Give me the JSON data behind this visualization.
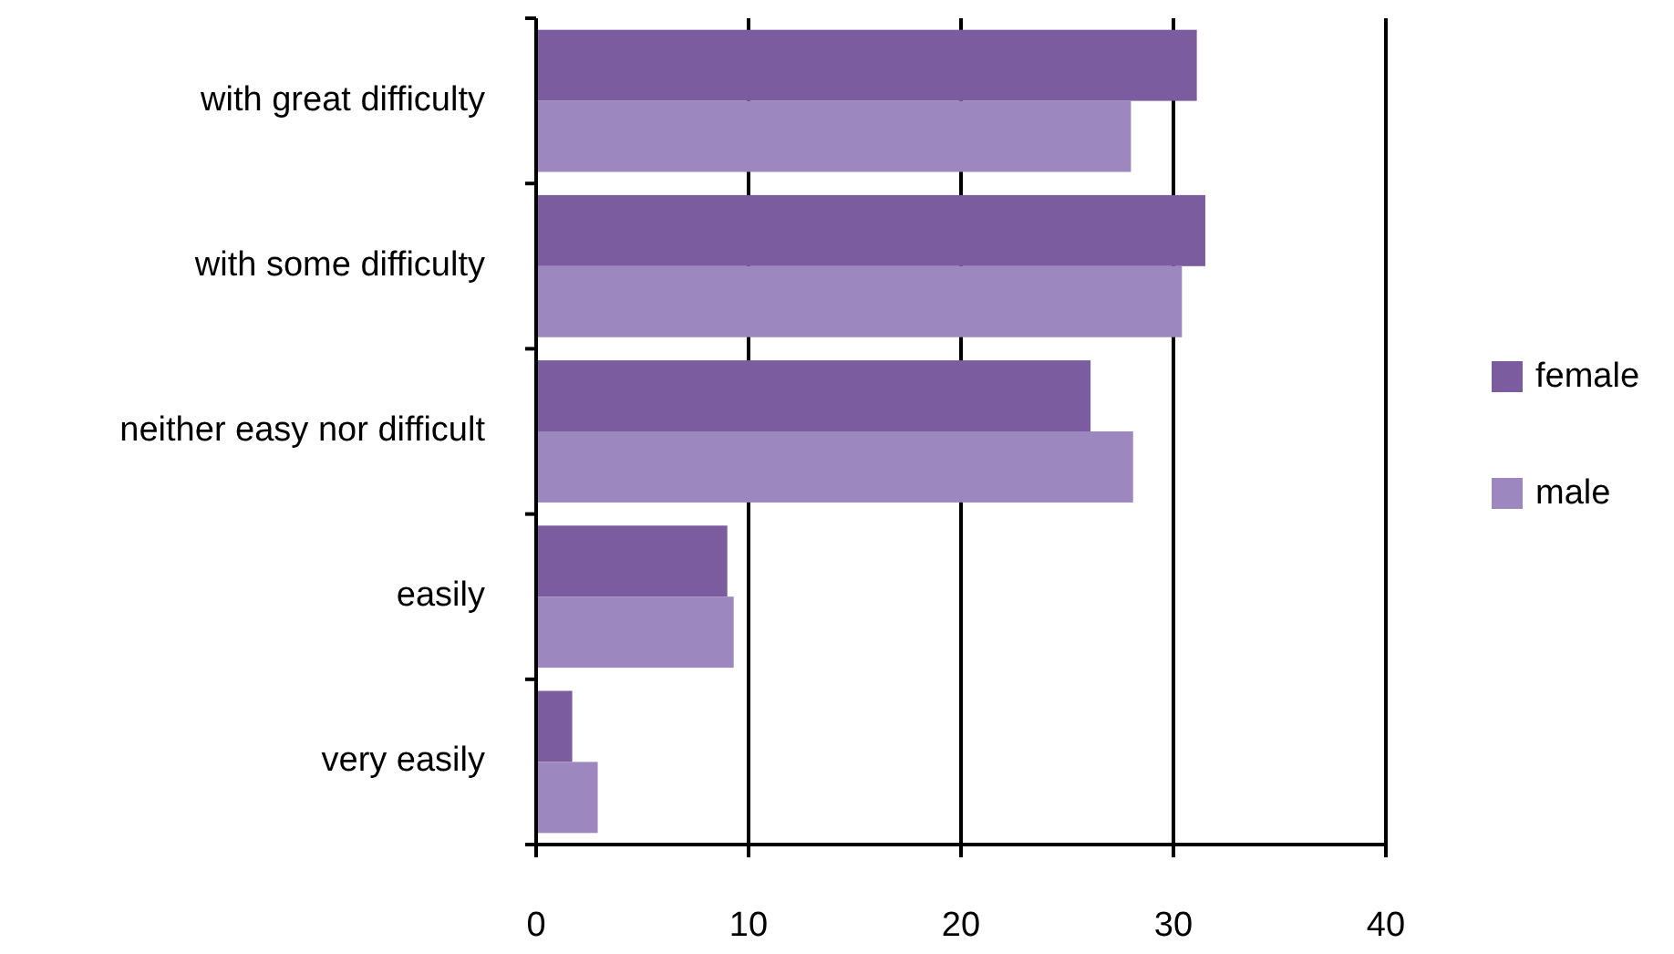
{
  "chart_data": {
    "type": "bar",
    "orientation": "horizontal",
    "categories": [
      "with great difficulty",
      "with some difficulty",
      "neither easy nor difficult",
      "easily",
      "very easily"
    ],
    "series": [
      {
        "name": "female",
        "color": "#7b5c9e",
        "values": [
          31.1,
          31.5,
          26.1,
          9.0,
          1.7
        ]
      },
      {
        "name": "male",
        "color": "#9d87bf",
        "values": [
          28.0,
          30.4,
          28.1,
          9.3,
          2.9
        ]
      }
    ],
    "xlim": [
      0,
      40
    ],
    "xticks": [
      0,
      10,
      20,
      30,
      40
    ],
    "grid": "x",
    "legend": "right"
  }
}
